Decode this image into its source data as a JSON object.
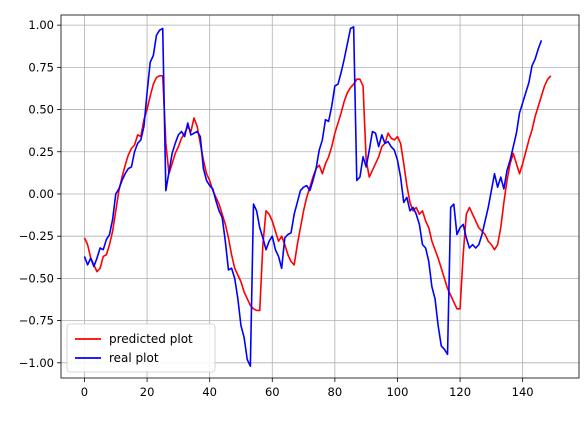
{
  "chart_data": {
    "type": "line",
    "title": "",
    "xlabel": "",
    "ylabel": "",
    "xlim": [
      -7.5,
      158
    ],
    "ylim": [
      -1.09,
      1.06
    ],
    "grid": true,
    "legend_position": "lower-left",
    "xticks": [
      0,
      20,
      40,
      60,
      80,
      100,
      120,
      140
    ],
    "yticks": [
      -1.0,
      -0.75,
      -0.5,
      -0.25,
      0.0,
      0.25,
      0.5,
      0.75,
      1.0
    ],
    "xtick_labels": [
      "0",
      "20",
      "40",
      "60",
      "80",
      "100",
      "120",
      "140"
    ],
    "ytick_labels": [
      "−1.00",
      "−0.75",
      "−0.50",
      "−0.25",
      "0.00",
      "0.25",
      "0.50",
      "0.75",
      "1.00"
    ],
    "series": [
      {
        "name": "predicted plot",
        "color": "#ff0000",
        "points": [
          [
            0,
            -0.26
          ],
          [
            1,
            -0.3
          ],
          [
            2,
            -0.38
          ],
          [
            3,
            -0.42
          ],
          [
            4,
            -0.46
          ],
          [
            5,
            -0.44
          ],
          [
            6,
            -0.37
          ],
          [
            7,
            -0.36
          ],
          [
            8,
            -0.3
          ],
          [
            9,
            -0.22
          ],
          [
            10,
            -0.1
          ],
          [
            11,
            0.02
          ],
          [
            12,
            0.1
          ],
          [
            13,
            0.17
          ],
          [
            14,
            0.23
          ],
          [
            15,
            0.27
          ],
          [
            16,
            0.29
          ],
          [
            17,
            0.35
          ],
          [
            18,
            0.34
          ],
          [
            19,
            0.44
          ],
          [
            20,
            0.5
          ],
          [
            21,
            0.58
          ],
          [
            22,
            0.65
          ],
          [
            23,
            0.69
          ],
          [
            24,
            0.7
          ],
          [
            25,
            0.7
          ],
          [
            26,
            0.3
          ],
          [
            27,
            0.12
          ],
          [
            28,
            0.18
          ],
          [
            29,
            0.24
          ],
          [
            30,
            0.28
          ],
          [
            31,
            0.33
          ],
          [
            32,
            0.36
          ],
          [
            33,
            0.4
          ],
          [
            34,
            0.37
          ],
          [
            35,
            0.45
          ],
          [
            36,
            0.4
          ],
          [
            37,
            0.3
          ],
          [
            38,
            0.2
          ],
          [
            39,
            0.12
          ],
          [
            40,
            0.08
          ],
          [
            41,
            0.02
          ],
          [
            42,
            -0.02
          ],
          [
            43,
            -0.06
          ],
          [
            44,
            -0.12
          ],
          [
            45,
            -0.18
          ],
          [
            46,
            -0.26
          ],
          [
            47,
            -0.36
          ],
          [
            48,
            -0.44
          ],
          [
            49,
            -0.48
          ],
          [
            50,
            -0.52
          ],
          [
            51,
            -0.58
          ],
          [
            52,
            -0.62
          ],
          [
            53,
            -0.66
          ],
          [
            54,
            -0.68
          ],
          [
            55,
            -0.69
          ],
          [
            56,
            -0.69
          ],
          [
            57,
            -0.3
          ],
          [
            58,
            -0.1
          ],
          [
            59,
            -0.12
          ],
          [
            60,
            -0.16
          ],
          [
            61,
            -0.22
          ],
          [
            62,
            -0.28
          ],
          [
            63,
            -0.25
          ],
          [
            64,
            -0.3
          ],
          [
            65,
            -0.36
          ],
          [
            66,
            -0.4
          ],
          [
            67,
            -0.42
          ],
          [
            68,
            -0.3
          ],
          [
            69,
            -0.2
          ],
          [
            70,
            -0.1
          ],
          [
            71,
            -0.02
          ],
          [
            72,
            0.04
          ],
          [
            73,
            0.1
          ],
          [
            74,
            0.15
          ],
          [
            75,
            0.17
          ],
          [
            76,
            0.12
          ],
          [
            77,
            0.18
          ],
          [
            78,
            0.22
          ],
          [
            79,
            0.28
          ],
          [
            80,
            0.36
          ],
          [
            81,
            0.42
          ],
          [
            82,
            0.48
          ],
          [
            83,
            0.55
          ],
          [
            84,
            0.6
          ],
          [
            85,
            0.63
          ],
          [
            86,
            0.65
          ],
          [
            87,
            0.68
          ],
          [
            88,
            0.68
          ],
          [
            89,
            0.64
          ],
          [
            90,
            0.2
          ],
          [
            91,
            0.1
          ],
          [
            92,
            0.14
          ],
          [
            93,
            0.18
          ],
          [
            94,
            0.22
          ],
          [
            95,
            0.28
          ],
          [
            96,
            0.3
          ],
          [
            97,
            0.36
          ],
          [
            98,
            0.33
          ],
          [
            99,
            0.32
          ],
          [
            100,
            0.34
          ],
          [
            101,
            0.3
          ],
          [
            102,
            0.18
          ],
          [
            103,
            0.05
          ],
          [
            104,
            -0.05
          ],
          [
            105,
            -0.1
          ],
          [
            106,
            -0.08
          ],
          [
            107,
            -0.12
          ],
          [
            108,
            -0.1
          ],
          [
            109,
            -0.16
          ],
          [
            110,
            -0.2
          ],
          [
            111,
            -0.28
          ],
          [
            112,
            -0.33
          ],
          [
            113,
            -0.38
          ],
          [
            114,
            -0.44
          ],
          [
            115,
            -0.5
          ],
          [
            116,
            -0.56
          ],
          [
            117,
            -0.6
          ],
          [
            118,
            -0.64
          ],
          [
            119,
            -0.68
          ],
          [
            120,
            -0.68
          ],
          [
            121,
            -0.36
          ],
          [
            122,
            -0.12
          ],
          [
            123,
            -0.08
          ],
          [
            124,
            -0.12
          ],
          [
            125,
            -0.16
          ],
          [
            126,
            -0.2
          ],
          [
            127,
            -0.22
          ],
          [
            128,
            -0.24
          ],
          [
            129,
            -0.28
          ],
          [
            130,
            -0.3
          ],
          [
            131,
            -0.33
          ],
          [
            132,
            -0.3
          ],
          [
            133,
            -0.2
          ],
          [
            134,
            -0.05
          ],
          [
            135,
            0.08
          ],
          [
            136,
            0.18
          ],
          [
            137,
            0.24
          ],
          [
            138,
            0.18
          ],
          [
            139,
            0.12
          ],
          [
            140,
            0.18
          ],
          [
            141,
            0.25
          ],
          [
            142,
            0.32
          ],
          [
            143,
            0.38
          ],
          [
            144,
            0.46
          ],
          [
            145,
            0.52
          ],
          [
            146,
            0.58
          ],
          [
            147,
            0.64
          ],
          [
            148,
            0.68
          ],
          [
            149,
            0.7
          ]
        ]
      },
      {
        "name": "real plot",
        "color": "#0000ff",
        "points": [
          [
            0,
            -0.37
          ],
          [
            1,
            -0.42
          ],
          [
            2,
            -0.38
          ],
          [
            3,
            -0.43
          ],
          [
            4,
            -0.38
          ],
          [
            5,
            -0.32
          ],
          [
            6,
            -0.33
          ],
          [
            7,
            -0.27
          ],
          [
            8,
            -0.24
          ],
          [
            9,
            -0.15
          ],
          [
            10,
            0.0
          ],
          [
            11,
            0.03
          ],
          [
            12,
            0.08
          ],
          [
            13,
            0.12
          ],
          [
            14,
            0.15
          ],
          [
            15,
            0.16
          ],
          [
            16,
            0.25
          ],
          [
            17,
            0.3
          ],
          [
            18,
            0.32
          ],
          [
            19,
            0.4
          ],
          [
            20,
            0.6
          ],
          [
            21,
            0.78
          ],
          [
            22,
            0.82
          ],
          [
            23,
            0.94
          ],
          [
            24,
            0.97
          ],
          [
            25,
            0.98
          ],
          [
            26,
            0.02
          ],
          [
            27,
            0.13
          ],
          [
            28,
            0.24
          ],
          [
            29,
            0.3
          ],
          [
            30,
            0.35
          ],
          [
            31,
            0.37
          ],
          [
            32,
            0.34
          ],
          [
            33,
            0.42
          ],
          [
            34,
            0.35
          ],
          [
            35,
            0.36
          ],
          [
            36,
            0.37
          ],
          [
            37,
            0.34
          ],
          [
            38,
            0.15
          ],
          [
            39,
            0.08
          ],
          [
            40,
            0.05
          ],
          [
            41,
            0.03
          ],
          [
            42,
            -0.04
          ],
          [
            43,
            -0.1
          ],
          [
            44,
            -0.14
          ],
          [
            45,
            -0.28
          ],
          [
            46,
            -0.45
          ],
          [
            47,
            -0.44
          ],
          [
            48,
            -0.5
          ],
          [
            49,
            -0.62
          ],
          [
            50,
            -0.78
          ],
          [
            51,
            -0.85
          ],
          [
            52,
            -0.98
          ],
          [
            53,
            -1.02
          ],
          [
            54,
            -0.06
          ],
          [
            55,
            -0.1
          ],
          [
            56,
            -0.2
          ],
          [
            57,
            -0.26
          ],
          [
            58,
            -0.33
          ],
          [
            59,
            -0.28
          ],
          [
            60,
            -0.25
          ],
          [
            61,
            -0.33
          ],
          [
            62,
            -0.37
          ],
          [
            63,
            -0.44
          ],
          [
            64,
            -0.26
          ],
          [
            65,
            -0.24
          ],
          [
            66,
            -0.23
          ],
          [
            67,
            -0.12
          ],
          [
            68,
            -0.05
          ],
          [
            69,
            0.02
          ],
          [
            70,
            0.04
          ],
          [
            71,
            0.05
          ],
          [
            72,
            0.02
          ],
          [
            73,
            0.08
          ],
          [
            74,
            0.15
          ],
          [
            75,
            0.26
          ],
          [
            76,
            0.32
          ],
          [
            77,
            0.44
          ],
          [
            78,
            0.43
          ],
          [
            79,
            0.52
          ],
          [
            80,
            0.64
          ],
          [
            81,
            0.65
          ],
          [
            82,
            0.72
          ],
          [
            83,
            0.8
          ],
          [
            84,
            0.89
          ],
          [
            85,
            0.98
          ],
          [
            86,
            0.99
          ],
          [
            87,
            0.08
          ],
          [
            88,
            0.1
          ],
          [
            89,
            0.22
          ],
          [
            90,
            0.16
          ],
          [
            91,
            0.26
          ],
          [
            92,
            0.37
          ],
          [
            93,
            0.36
          ],
          [
            94,
            0.28
          ],
          [
            95,
            0.35
          ],
          [
            96,
            0.3
          ],
          [
            97,
            0.31
          ],
          [
            98,
            0.28
          ],
          [
            99,
            0.26
          ],
          [
            100,
            0.2
          ],
          [
            101,
            0.1
          ],
          [
            102,
            -0.05
          ],
          [
            103,
            -0.02
          ],
          [
            104,
            -0.1
          ],
          [
            105,
            -0.08
          ],
          [
            106,
            -0.12
          ],
          [
            107,
            -0.18
          ],
          [
            108,
            -0.3
          ],
          [
            109,
            -0.32
          ],
          [
            110,
            -0.4
          ],
          [
            111,
            -0.55
          ],
          [
            112,
            -0.62
          ],
          [
            113,
            -0.78
          ],
          [
            114,
            -0.9
          ],
          [
            115,
            -0.92
          ],
          [
            116,
            -0.95
          ],
          [
            117,
            -0.08
          ],
          [
            118,
            -0.06
          ],
          [
            119,
            -0.24
          ],
          [
            120,
            -0.2
          ],
          [
            121,
            -0.18
          ],
          [
            122,
            -0.26
          ],
          [
            123,
            -0.32
          ],
          [
            124,
            -0.3
          ],
          [
            125,
            -0.32
          ],
          [
            126,
            -0.3
          ],
          [
            127,
            -0.24
          ],
          [
            128,
            -0.16
          ],
          [
            129,
            -0.08
          ],
          [
            130,
            0.02
          ],
          [
            131,
            0.12
          ],
          [
            132,
            0.04
          ],
          [
            133,
            0.1
          ],
          [
            134,
            0.03
          ],
          [
            135,
            0.14
          ],
          [
            136,
            0.2
          ],
          [
            137,
            0.28
          ],
          [
            138,
            0.36
          ],
          [
            139,
            0.48
          ],
          [
            140,
            0.54
          ],
          [
            141,
            0.6
          ],
          [
            142,
            0.66
          ],
          [
            143,
            0.76
          ],
          [
            144,
            0.8
          ],
          [
            145,
            0.86
          ],
          [
            146,
            0.91
          ]
        ]
      }
    ]
  }
}
